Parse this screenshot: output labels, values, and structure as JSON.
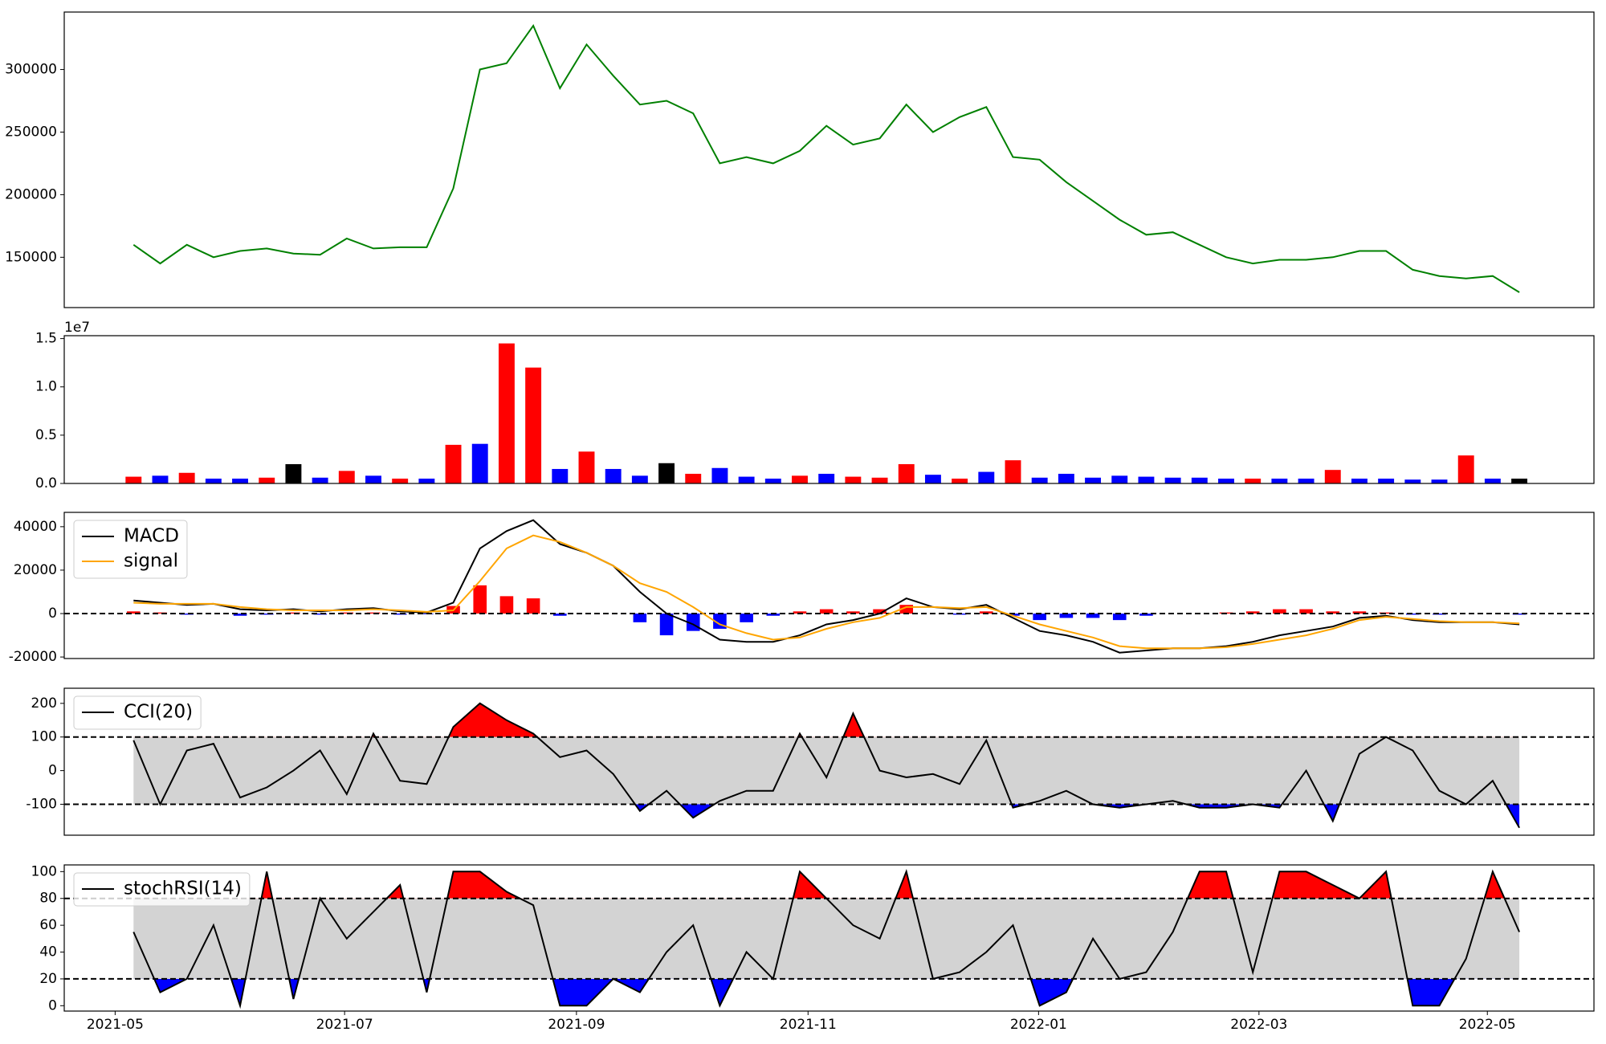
{
  "chart_data": [
    {
      "type": "line",
      "x": [
        0,
        1,
        2,
        3,
        4,
        5,
        6,
        7,
        8,
        9,
        10,
        11,
        12,
        13,
        14,
        15,
        16,
        17,
        18,
        19,
        20,
        21,
        22,
        23,
        24,
        25,
        26,
        27,
        28,
        29,
        30,
        31,
        32,
        33,
        34,
        35,
        36,
        37,
        38,
        39,
        40,
        41,
        42,
        43,
        44,
        45,
        46,
        47,
        48,
        49,
        50,
        51,
        52
      ],
      "xlim": [
        -2.6,
        54.8
      ],
      "ylim": [
        109800,
        345900
      ],
      "yticks": [
        150000,
        200000,
        250000,
        300000
      ],
      "series": [
        {
          "color": "#008000",
          "values": [
            160000,
            145000,
            160000,
            150000,
            155000,
            157000,
            153000,
            152000,
            165000,
            157000,
            158000,
            158000,
            205000,
            300000,
            305000,
            335000,
            285000,
            320000,
            295000,
            272000,
            275000,
            265000,
            225000,
            230000,
            225000,
            235000,
            255000,
            240000,
            245000,
            272000,
            250000,
            262000,
            270000,
            230000,
            228000,
            210000,
            195000,
            180000,
            168000,
            170000,
            160000,
            150000,
            145000,
            148000,
            148000,
            150000,
            155000,
            155000,
            140000,
            135000,
            133000,
            135000,
            122000
          ]
        }
      ]
    },
    {
      "type": "bar",
      "x": [
        0,
        1,
        2,
        3,
        4,
        5,
        6,
        7,
        8,
        9,
        10,
        11,
        12,
        13,
        14,
        15,
        16,
        17,
        18,
        19,
        20,
        21,
        22,
        23,
        24,
        25,
        26,
        27,
        28,
        29,
        30,
        31,
        32,
        33,
        34,
        35,
        36,
        37,
        38,
        39,
        40,
        41,
        42,
        43,
        44,
        45,
        46,
        47,
        48,
        49,
        50,
        51,
        52
      ],
      "xlim": [
        -2.6,
        54.8
      ],
      "ylim": [
        0,
        15300000
      ],
      "yticks": [
        {
          "value": 0,
          "label": "0.0"
        },
        {
          "value": 5000000,
          "label": "0.5"
        },
        {
          "value": 10000000,
          "label": "1.0"
        },
        {
          "value": 15000000,
          "label": "1.5"
        }
      ],
      "y_offset_label": "1e7",
      "values": [
        700000,
        800000,
        1100000,
        500000,
        500000,
        600000,
        2000000,
        600000,
        1300000,
        800000,
        500000,
        500000,
        4000000,
        4100000,
        14500000,
        12000000,
        1500000,
        3300000,
        1500000,
        800000,
        2100000,
        1000000,
        1600000,
        700000,
        500000,
        800000,
        1000000,
        700000,
        600000,
        2000000,
        900000,
        500000,
        1200000,
        2400000,
        600000,
        1000000,
        600000,
        800000,
        700000,
        600000,
        600000,
        500000,
        500000,
        500000,
        500000,
        1400000,
        500000,
        500000,
        400000,
        400000,
        2900000,
        500000,
        500000
      ],
      "colors": [
        "red",
        "blue",
        "red",
        "blue",
        "blue",
        "red",
        "black",
        "blue",
        "red",
        "blue",
        "red",
        "blue",
        "red",
        "blue",
        "red",
        "red",
        "blue",
        "red",
        "blue",
        "blue",
        "black",
        "red",
        "blue",
        "blue",
        "blue",
        "red",
        "blue",
        "red",
        "red",
        "red",
        "blue",
        "red",
        "blue",
        "red",
        "blue",
        "blue",
        "blue",
        "blue",
        "blue",
        "blue",
        "blue",
        "blue",
        "red",
        "blue",
        "blue",
        "red",
        "blue",
        "blue",
        "blue",
        "blue",
        "red",
        "blue",
        "black"
      ]
    },
    {
      "type": "line",
      "x": [
        0,
        1,
        2,
        3,
        4,
        5,
        6,
        7,
        8,
        9,
        10,
        11,
        12,
        13,
        14,
        15,
        16,
        17,
        18,
        19,
        20,
        21,
        22,
        23,
        24,
        25,
        26,
        27,
        28,
        29,
        30,
        31,
        32,
        33,
        34,
        35,
        36,
        37,
        38,
        39,
        40,
        41,
        42,
        43,
        44,
        45,
        46,
        47,
        48,
        49,
        50,
        51,
        52
      ],
      "xlim": [
        -2.6,
        54.8
      ],
      "ylim": [
        -20700,
        46600
      ],
      "yticks": [
        -20000,
        0,
        20000,
        40000
      ],
      "levels": [
        0
      ],
      "histogram": {
        "pos_color": "red",
        "neg_color": "blue",
        "values": [
          1000,
          500,
          -500,
          0,
          -1000,
          -500,
          500,
          -500,
          500,
          500,
          -500,
          -300,
          3500,
          13000,
          8000,
          7000,
          -1000,
          0,
          0,
          -4000,
          -10000,
          -8000,
          -7000,
          -4000,
          -1000,
          1000,
          2000,
          1000,
          2000,
          4000,
          0,
          -500,
          1000,
          -1000,
          -3000,
          -2000,
          -2000,
          -3000,
          -1000,
          0,
          0,
          500,
          1000,
          2000,
          2000,
          1000,
          1000,
          500,
          -500,
          -500,
          0,
          0,
          -500
        ]
      },
      "legend": "upper left",
      "series": [
        {
          "name": "MACD",
          "color": "#000000",
          "values": [
            6000,
            5000,
            4000,
            4500,
            2000,
            1500,
            2000,
            1000,
            2000,
            2500,
            1000,
            500,
            5000,
            30000,
            38000,
            43000,
            32000,
            28000,
            22000,
            10000,
            0,
            -5000,
            -12000,
            -13000,
            -13000,
            -10000,
            -5000,
            -3000,
            0,
            7000,
            3000,
            2000,
            4000,
            -2000,
            -8000,
            -10000,
            -13000,
            -18000,
            -17000,
            -16000,
            -16000,
            -15000,
            -13000,
            -10000,
            -8000,
            -6000,
            -2000,
            -1000,
            -3000,
            -4000,
            -4000,
            -4000,
            -5000
          ]
        },
        {
          "name": "signal",
          "color": "#ffa500",
          "values": [
            5000,
            4500,
            4500,
            4500,
            3000,
            2000,
            1500,
            1500,
            1500,
            2000,
            1500,
            800,
            1500,
            15000,
            30000,
            36000,
            33000,
            28000,
            22000,
            14000,
            10000,
            3000,
            -5000,
            -9000,
            -12000,
            -11000,
            -7000,
            -4000,
            -2000,
            3000,
            3000,
            2500,
            3000,
            -1000,
            -5000,
            -8000,
            -11000,
            -15000,
            -16000,
            -16000,
            -16000,
            -15500,
            -14000,
            -12000,
            -10000,
            -7000,
            -3000,
            -1500,
            -2500,
            -3500,
            -4000,
            -4000,
            -4500
          ]
        }
      ]
    },
    {
      "type": "line",
      "x": [
        0,
        1,
        2,
        3,
        4,
        5,
        6,
        7,
        8,
        9,
        10,
        11,
        12,
        13,
        14,
        15,
        16,
        17,
        18,
        19,
        20,
        21,
        22,
        23,
        24,
        25,
        26,
        27,
        28,
        29,
        30,
        31,
        32,
        33,
        34,
        35,
        36,
        37,
        38,
        39,
        40,
        41,
        42,
        43,
        44,
        45,
        46,
        47,
        48,
        49,
        50,
        51,
        52
      ],
      "xlim": [
        -2.6,
        54.8
      ],
      "ylim": [
        -192,
        245
      ],
      "yticks": [
        -100,
        0,
        100,
        200
      ],
      "levels": [
        -100,
        100
      ],
      "band_color": "#d3d3d3",
      "upper_color": "red",
      "lower_color": "blue",
      "legend": "upper left",
      "series": [
        {
          "name": "CCI(20)",
          "color": "#000000",
          "values": [
            90,
            -100,
            60,
            80,
            -80,
            -50,
            0,
            60,
            -70,
            110,
            -30,
            -40,
            130,
            200,
            150,
            110,
            40,
            60,
            -10,
            -120,
            -60,
            -140,
            -90,
            -60,
            -60,
            110,
            -20,
            170,
            0,
            -20,
            -10,
            -40,
            90,
            -110,
            -90,
            -60,
            -100,
            -110,
            -100,
            -90,
            -110,
            -110,
            -100,
            -110,
            0,
            -150,
            50,
            100,
            60,
            -60,
            -100,
            -30,
            -170
          ]
        }
      ]
    },
    {
      "type": "line",
      "x": [
        0,
        1,
        2,
        3,
        4,
        5,
        6,
        7,
        8,
        9,
        10,
        11,
        12,
        13,
        14,
        15,
        16,
        17,
        18,
        19,
        20,
        21,
        22,
        23,
        24,
        25,
        26,
        27,
        28,
        29,
        30,
        31,
        32,
        33,
        34,
        35,
        36,
        37,
        38,
        39,
        40,
        41,
        42,
        43,
        44,
        45,
        46,
        47,
        48,
        49,
        50,
        51,
        52
      ],
      "xlim": [
        -2.6,
        54.8
      ],
      "xticks": [
        {
          "value": -0.69,
          "label": "2021-05"
        },
        {
          "value": 7.92,
          "label": "2021-07"
        },
        {
          "value": 16.62,
          "label": "2021-09"
        },
        {
          "value": 25.31,
          "label": "2021-11"
        },
        {
          "value": 33.96,
          "label": "2022-01"
        },
        {
          "value": 42.23,
          "label": "2022-03"
        },
        {
          "value": 50.8,
          "label": "2022-05"
        }
      ],
      "ylim": [
        -4,
        105
      ],
      "yticks": [
        0,
        20,
        40,
        60,
        80,
        100
      ],
      "levels": [
        20,
        80
      ],
      "band_color": "#d3d3d3",
      "upper_color": "red",
      "lower_color": "blue",
      "legend": "upper left",
      "series": [
        {
          "name": "stochRSI(14)",
          "color": "#000000",
          "values": [
            55,
            10,
            20,
            60,
            0,
            100,
            5,
            80,
            50,
            70,
            90,
            10,
            100,
            100,
            85,
            75,
            0,
            0,
            20,
            10,
            40,
            60,
            0,
            40,
            20,
            100,
            80,
            60,
            50,
            100,
            20,
            25,
            40,
            60,
            0,
            10,
            50,
            20,
            25,
            55,
            100,
            100,
            25,
            100,
            100,
            90,
            80,
            100,
            0,
            0,
            35,
            100,
            55
          ]
        }
      ]
    }
  ]
}
